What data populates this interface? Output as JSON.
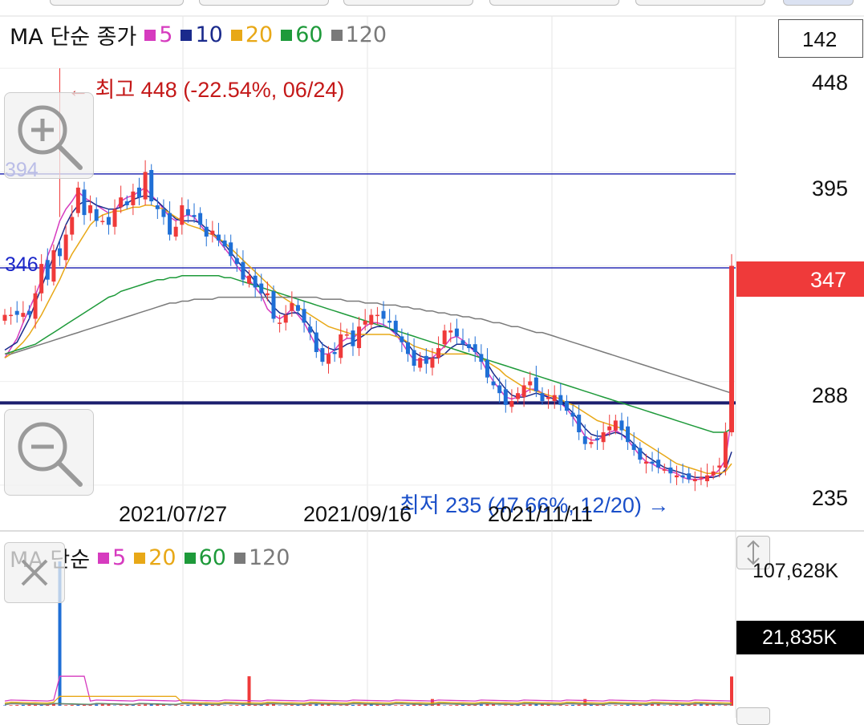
{
  "main_legend": {
    "title": "MA 단순 종가",
    "items": [
      {
        "label": "5",
        "color": "#d63bbf"
      },
      {
        "label": "10",
        "color": "#1a2a8c"
      },
      {
        "label": "20",
        "color": "#e8a817"
      },
      {
        "label": "60",
        "color": "#1e9a3a"
      },
      {
        "label": "120",
        "color": "#7a7a7a"
      }
    ]
  },
  "volume_legend": {
    "title": "MA 단순",
    "items": [
      {
        "label": "5",
        "color": "#d63bbf"
      },
      {
        "label": "20",
        "color": "#e8a817"
      },
      {
        "label": "60",
        "color": "#1e9a3a"
      },
      {
        "label": "120",
        "color": "#7a7a7a"
      }
    ]
  },
  "price_box": "142",
  "current_price": "347",
  "current_price_color": "#ef3a3a",
  "high_annotation": "← 최고 448 (-22.54%, 06/24)",
  "low_annotation": "최저 235 (47.66%, 12/20) →",
  "horizontal_line_labels": [
    "394",
    "346"
  ],
  "volume_max_label": "107,628K",
  "volume_current_label": "21,835K",
  "chart_data": {
    "type": "candlestick",
    "price_axis_ticks": [
      448,
      395,
      347,
      288,
      235
    ],
    "date_labels": [
      "2021/07/27",
      "2021/09/16",
      "2021/11/11"
    ],
    "high": {
      "value": 448,
      "change_pct": -22.54,
      "date": "06/24"
    },
    "low": {
      "value": 235,
      "change_pct": 47.66,
      "date": "12/20"
    },
    "horizontal_lines": [
      394,
      346,
      277
    ],
    "closes": [
      322,
      322,
      322,
      323,
      322,
      333,
      348,
      340,
      355,
      352,
      363,
      372,
      387,
      373,
      378,
      370,
      370,
      368,
      376,
      382,
      378,
      385,
      382,
      395,
      380,
      376,
      372,
      363,
      367,
      378,
      373,
      372,
      368,
      362,
      365,
      360,
      357,
      352,
      348,
      340,
      342,
      336,
      333,
      333,
      320,
      318,
      322,
      328,
      324,
      318,
      313,
      303,
      298,
      302,
      302,
      312,
      312,
      306,
      316,
      319,
      322,
      322,
      320,
      318,
      313,
      308,
      302,
      296,
      300,
      297,
      300,
      305,
      314,
      314,
      311,
      307,
      305,
      303,
      298,
      290,
      286,
      282,
      276,
      278,
      282,
      286,
      288,
      283,
      278,
      280,
      281,
      276,
      273,
      270,
      262,
      256,
      257,
      258,
      262,
      265,
      268,
      263,
      257,
      253,
      248,
      247,
      246,
      244,
      243,
      241,
      240,
      239,
      238,
      238,
      239,
      240,
      242,
      245,
      262,
      347
    ],
    "ma": {
      "5": [
        300,
        305,
        310,
        318,
        325,
        332,
        340,
        352,
        360,
        370,
        376,
        380,
        385,
        382,
        380,
        378,
        376,
        374,
        375,
        380,
        382,
        383,
        385,
        387,
        383,
        380,
        376,
        372,
        370,
        372,
        373,
        372,
        368,
        364,
        363,
        360,
        356,
        352,
        347,
        343,
        340,
        336,
        332,
        325,
        322,
        320,
        322,
        325,
        322,
        318,
        312,
        306,
        302,
        302,
        304,
        308,
        310,
        310,
        313,
        316,
        318,
        318,
        317,
        315,
        312,
        308,
        303,
        299,
        299,
        299,
        300,
        303,
        306,
        310,
        311,
        309,
        306,
        303,
        299,
        293,
        288,
        284,
        280,
        279,
        280,
        282,
        284,
        284,
        282,
        280,
        279,
        277,
        274,
        270,
        265,
        260,
        258,
        258,
        260,
        262,
        263,
        261,
        258,
        254,
        250,
        247,
        246,
        244,
        243,
        242,
        241,
        239,
        238,
        238,
        238,
        239,
        240,
        243,
        248,
        270
      ],
      "10": [
        304,
        306,
        308,
        314,
        320,
        328,
        336,
        344,
        352,
        360,
        368,
        374,
        378,
        380,
        380,
        378,
        377,
        376,
        376,
        377,
        379,
        381,
        382,
        383,
        382,
        380,
        377,
        374,
        371,
        370,
        370,
        370,
        369,
        366,
        364,
        361,
        358,
        354,
        350,
        346,
        343,
        339,
        335,
        330,
        326,
        323,
        322,
        323,
        323,
        320,
        316,
        311,
        307,
        305,
        304,
        305,
        307,
        308,
        310,
        312,
        315,
        316,
        316,
        315,
        313,
        310,
        307,
        303,
        301,
        300,
        300,
        300,
        302,
        305,
        307,
        307,
        306,
        304,
        301,
        297,
        292,
        288,
        284,
        281,
        280,
        280,
        281,
        282,
        281,
        280,
        279,
        277,
        275,
        272,
        268,
        264,
        261,
        260,
        260,
        261,
        262,
        261,
        259,
        256,
        253,
        250,
        248,
        246,
        244,
        243,
        242,
        241,
        240,
        239,
        239,
        239,
        239,
        240,
        243,
        252
      ],
      "20": [
        300,
        302,
        305,
        308,
        312,
        317,
        322,
        328,
        334,
        340,
        347,
        353,
        358,
        363,
        368,
        371,
        373,
        374,
        375,
        375,
        376,
        377,
        377,
        378,
        378,
        377,
        376,
        374,
        372,
        370,
        368,
        367,
        366,
        364,
        363,
        361,
        359,
        356,
        353,
        350,
        347,
        344,
        341,
        338,
        335,
        332,
        330,
        328,
        326,
        324,
        322,
        320,
        318,
        316,
        315,
        314,
        313,
        312,
        312,
        312,
        312,
        312,
        312,
        312,
        311,
        310,
        308,
        306,
        305,
        304,
        303,
        302,
        302,
        302,
        302,
        302,
        302,
        301,
        300,
        298,
        296,
        294,
        291,
        289,
        287,
        285,
        284,
        283,
        282,
        281,
        280,
        279,
        277,
        276,
        274,
        272,
        270,
        268,
        267,
        266,
        265,
        264,
        262,
        260,
        258,
        256,
        254,
        252,
        250,
        248,
        246,
        245,
        244,
        243,
        242,
        241,
        241,
        241,
        242,
        246
      ],
      "60": [
        302,
        303,
        304,
        305,
        306,
        307,
        309,
        311,
        313,
        315,
        317,
        319,
        321,
        323,
        325,
        327,
        329,
        331,
        332,
        334,
        335,
        336,
        337,
        338,
        339,
        340,
        340,
        341,
        341,
        342,
        342,
        342,
        342,
        342,
        342,
        342,
        341,
        341,
        340,
        339,
        338,
        337,
        336,
        335,
        334,
        333,
        332,
        331,
        330,
        329,
        328,
        327,
        326,
        325,
        324,
        323,
        322,
        321,
        320,
        319,
        318,
        317,
        316,
        315,
        314,
        313,
        312,
        311,
        310,
        309,
        308,
        307,
        306,
        305,
        304,
        303,
        302,
        301,
        300,
        299,
        298,
        297,
        296,
        295,
        294,
        293,
        292,
        291,
        290,
        289,
        288,
        287,
        286,
        285,
        284,
        283,
        282,
        281,
        280,
        279,
        278,
        277,
        276,
        275,
        274,
        273,
        272,
        271,
        270,
        269,
        268,
        267,
        266,
        265,
        264,
        263,
        262,
        262,
        262,
        264
      ],
      "120": [
        302,
        302,
        303,
        304,
        305,
        306,
        307,
        308,
        309,
        310,
        311,
        312,
        313,
        314,
        315,
        316,
        317,
        318,
        319,
        320,
        321,
        322,
        323,
        324,
        325,
        326,
        327,
        328,
        328,
        329,
        329,
        330,
        330,
        330,
        330,
        331,
        331,
        331,
        331,
        331,
        331,
        331,
        331,
        331,
        331,
        331,
        331,
        331,
        331,
        331,
        331,
        331,
        330,
        330,
        330,
        330,
        329,
        329,
        329,
        328,
        328,
        328,
        327,
        327,
        327,
        326,
        326,
        325,
        325,
        324,
        324,
        323,
        323,
        322,
        322,
        321,
        321,
        320,
        320,
        319,
        318,
        318,
        317,
        316,
        316,
        315,
        314,
        313,
        313,
        312,
        311,
        310,
        309,
        308,
        307,
        306,
        305,
        304,
        303,
        302,
        301,
        300,
        299,
        298,
        297,
        296,
        295,
        294,
        293,
        292,
        291,
        290,
        289,
        288,
        287,
        286,
        285,
        284,
        283,
        282
      ]
    },
    "volume_y_range_k": [
      0,
      107628
    ],
    "current_volume_k": 21835
  }
}
